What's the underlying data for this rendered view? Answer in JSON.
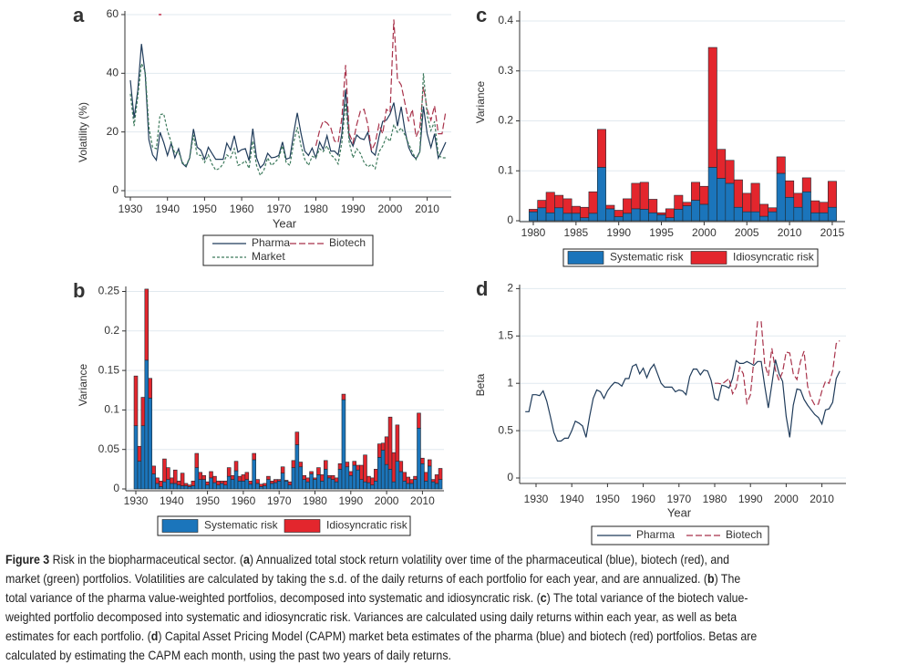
{
  "chart_data": [
    {
      "panel": "a",
      "type": "line",
      "xlabel": "Year",
      "ylabel": "Volatility (%)",
      "xlim": [
        1928,
        2016
      ],
      "ylim": [
        0,
        60
      ],
      "x_ticks": [
        "1930",
        "1940",
        "1950",
        "1960",
        "1970",
        "1980",
        "1990",
        "2000",
        "2010"
      ],
      "y_ticks": [
        "0",
        "20",
        "40",
        "60"
      ],
      "grid": true,
      "legend": [
        "Pharma",
        "Biotech",
        "Market"
      ],
      "legend_placement": "bottom",
      "series": [
        {
          "name": "Pharma",
          "color": "#1f3b5a",
          "start": 1930,
          "values": [
            37.6,
            24.7,
            34,
            50,
            39.7,
            17.4,
            12.2,
            10.4,
            19.9,
            16.4,
            12,
            16.2,
            11.2,
            14.3,
            9.3,
            8.1,
            11.2,
            21,
            14.8,
            13.8,
            10.7,
            14.8,
            12.7,
            10.7,
            10.7,
            10.7,
            16.2,
            13.8,
            18.7,
            13.1,
            14,
            14.3,
            10.2,
            21.1,
            11.2,
            7.8,
            9.1,
            12.7,
            11.2,
            11.4,
            12,
            16.6,
            10.7,
            11.2,
            19.5,
            26.5,
            19.5,
            13.5,
            12,
            14.5,
            11.2,
            16.6,
            14.1,
            18.7,
            13.5,
            13.5,
            12.2,
            19.5,
            34.5,
            17.9,
            15.2,
            19,
            17.8,
            17.4,
            19.9,
            13.2,
            12.1,
            18.3,
            23.6,
            24,
            26.1,
            30,
            22,
            28.6,
            20.5,
            14.7,
            12.1,
            10.9,
            13.2,
            28.7,
            19.4,
            14.7,
            19.4,
            11.1,
            13.7,
            16.5
          ]
        },
        {
          "name": "Biotech",
          "color": "#a8324a",
          "start": 1980,
          "values": [
            15.3,
            20.5,
            23.8,
            23.1,
            21.5,
            16.9,
            16.4,
            24.7,
            42.8,
            19.5,
            16.3,
            22.5,
            27.1,
            27.7,
            22.5,
            13.7,
            16.3,
            22.5,
            19.4,
            27.7,
            26.7,
            58.3,
            38,
            36,
            29.8,
            23.6,
            27.7,
            18.3,
            21.4,
            35.4,
            27.7,
            24,
            28.9,
            19.4,
            19.4,
            27.1
          ]
        },
        {
          "name": "Market",
          "color": "#3d7a5c",
          "start": 1930,
          "values": [
            33,
            22,
            32,
            43.3,
            40.7,
            21.6,
            14.8,
            14.3,
            25.9,
            26.2,
            20.5,
            16.4,
            12.7,
            13.3,
            9.6,
            8.6,
            11.2,
            19,
            12.2,
            12,
            9.6,
            12.2,
            9.1,
            7,
            7.6,
            9.1,
            12.2,
            11.2,
            14.3,
            8.6,
            9.1,
            10.2,
            7.6,
            16.9,
            8.6,
            5.2,
            7,
            11.2,
            8.6,
            9.6,
            11.2,
            15.3,
            9.6,
            8.6,
            16.4,
            21.6,
            15.3,
            10.7,
            8.6,
            11.7,
            11.2,
            14.3,
            13.3,
            15.3,
            12.2,
            11.2,
            9.1,
            16.4,
            29.8,
            16.4,
            11.2,
            14.3,
            12.7,
            9.6,
            8.1,
            9,
            7.5,
            13.2,
            15.2,
            18.3,
            16.8,
            22.5,
            19.9,
            21.4,
            19,
            15.9,
            13.2,
            10.6,
            13.2,
            40,
            25.6,
            20.5,
            23.6,
            12.1,
            11.2,
            11.2
          ]
        }
      ],
      "biotech_stray_point": [
        1938,
        60
      ]
    },
    {
      "panel": "b",
      "type": "bar",
      "stacked": true,
      "ylabel": "Variance",
      "xlim": [
        1927,
        2016
      ],
      "ylim": [
        0,
        0.25
      ],
      "x_ticks": [
        "1930",
        "1940",
        "1950",
        "1960",
        "1970",
        "1980",
        "1990",
        "2000",
        "2010"
      ],
      "y_ticks": [
        "0",
        "0.05",
        "0.1",
        "0.15",
        "0.2",
        "0.25"
      ],
      "grid": true,
      "legend": [
        "Systematic risk",
        "Idiosyncratic risk"
      ],
      "legend_placement": "bottom",
      "start": 1930,
      "series": [
        {
          "name": "Systematic risk",
          "color": "#1b75bb",
          "values": [
            0.08,
            0.035,
            0.08,
            0.163,
            0.115,
            0.019,
            0.007,
            0.003,
            0.009,
            0.012,
            0.007,
            0.007,
            0.005,
            0.004,
            0.004,
            0.003,
            0.004,
            0.027,
            0.012,
            0.012,
            0.005,
            0.014,
            0.008,
            0.005,
            0.007,
            0.005,
            0.016,
            0.012,
            0.023,
            0.01,
            0.01,
            0.012,
            0.006,
            0.037,
            0.007,
            0.003,
            0.004,
            0.012,
            0.007,
            0.008,
            0.01,
            0.02,
            0.01,
            0.005,
            0.027,
            0.056,
            0.028,
            0.012,
            0.009,
            0.019,
            0.012,
            0.018,
            0.01,
            0.025,
            0.014,
            0.012,
            0.009,
            0.025,
            0.113,
            0.028,
            0.017,
            0.03,
            0.024,
            0.012,
            0.009,
            0.008,
            0.005,
            0.01,
            0.04,
            0.049,
            0.031,
            0.025,
            0.009,
            0.035,
            0.022,
            0.01,
            0.007,
            0.007,
            0.012,
            0.077,
            0.032,
            0.01,
            0.029,
            0.009,
            0.007,
            0.012
          ]
        },
        {
          "name": "Idiosyncratic risk",
          "color": "#e3262d",
          "values": [
            0.063,
            0.019,
            0.036,
            0.09,
            0.025,
            0.01,
            0.007,
            0.007,
            0.029,
            0.015,
            0.007,
            0.017,
            0.005,
            0.016,
            0.003,
            0.002,
            0.006,
            0.018,
            0.009,
            0.005,
            0.004,
            0.008,
            0.008,
            0.005,
            0.003,
            0.005,
            0.011,
            0.005,
            0.012,
            0.006,
            0.008,
            0.009,
            0.004,
            0.008,
            0.005,
            0.003,
            0.003,
            0.004,
            0.003,
            0.004,
            0.002,
            0.008,
            0.001,
            0.004,
            0.009,
            0.016,
            0.006,
            0.005,
            0.005,
            0.003,
            0.002,
            0.009,
            0.008,
            0.011,
            0.003,
            0.005,
            0.005,
            0.007,
            0.007,
            0.006,
            0.005,
            0.005,
            0.006,
            0.018,
            0.034,
            0.008,
            0.009,
            0.015,
            0.017,
            0.009,
            0.035,
            0.066,
            0.037,
            0.046,
            0.013,
            0.011,
            0.008,
            0.005,
            0.004,
            0.019,
            0.007,
            0.011,
            0.008,
            0.003,
            0.011,
            0.014
          ]
        }
      ]
    },
    {
      "panel": "c",
      "type": "bar",
      "stacked": true,
      "ylabel": "Variance",
      "xlim": [
        1978.4,
        2016.3
      ],
      "ylim": [
        0,
        0.4
      ],
      "x_ticks": [
        "1980",
        "1985",
        "1990",
        "1995",
        "2000",
        "2005",
        "2010",
        "2015"
      ],
      "y_ticks": [
        "0",
        "0.1",
        "0.2",
        "0.3",
        "0.4"
      ],
      "grid": true,
      "legend": [
        "Systematic risk",
        "Idiosyncratic risk"
      ],
      "legend_placement": "bottom",
      "start": 1980,
      "series": [
        {
          "name": "Systematic risk",
          "color": "#1b75bb",
          "values": [
            0.018,
            0.026,
            0.016,
            0.026,
            0.015,
            0.015,
            0.006,
            0.015,
            0.107,
            0.024,
            0.008,
            0.015,
            0.024,
            0.023,
            0.016,
            0.012,
            0.006,
            0.023,
            0.03,
            0.041,
            0.033,
            0.107,
            0.085,
            0.075,
            0.027,
            0.018,
            0.018,
            0.009,
            0.018,
            0.095,
            0.047,
            0.027,
            0.058,
            0.016,
            0.016,
            0.027
          ]
        },
        {
          "name": "Idiosyncratic risk",
          "color": "#e3262d",
          "values": [
            0.005,
            0.015,
            0.041,
            0.025,
            0.029,
            0.014,
            0.021,
            0.043,
            0.076,
            0.007,
            0.013,
            0.029,
            0.051,
            0.054,
            0.027,
            0.004,
            0.018,
            0.028,
            0.007,
            0.036,
            0.036,
            0.24,
            0.058,
            0.046,
            0.055,
            0.037,
            0.057,
            0.024,
            0.008,
            0.033,
            0.033,
            0.028,
            0.028,
            0.024,
            0.021,
            0.052
          ]
        }
      ]
    },
    {
      "panel": "d",
      "type": "line",
      "xlabel": "Year",
      "ylabel": "Beta",
      "xlim": [
        1925.5,
        2016.5
      ],
      "ylim": [
        0,
        2
      ],
      "x_ticks": [
        "1930",
        "1940",
        "1950",
        "1960",
        "1970",
        "1980",
        "1990",
        "2000",
        "2010"
      ],
      "y_ticks": [
        "0",
        "0.5",
        "1",
        "1.5",
        "2"
      ],
      "grid": true,
      "legend": [
        "Pharma",
        "Biotech"
      ],
      "legend_placement": "bottom",
      "series": [
        {
          "name": "Pharma",
          "color": "#1f3b5a",
          "start": 1927,
          "values": [
            0.7,
            0.7,
            0.88,
            0.88,
            0.87,
            0.92,
            0.81,
            0.65,
            0.48,
            0.39,
            0.39,
            0.42,
            0.42,
            0.5,
            0.6,
            0.58,
            0.55,
            0.43,
            0.65,
            0.84,
            0.93,
            0.91,
            0.84,
            0.92,
            0.97,
            1.01,
            1.0,
            0.97,
            1.05,
            1.05,
            1.18,
            1.2,
            1.1,
            1.16,
            1.06,
            1.15,
            1.2,
            1.1,
            1.0,
            0.96,
            0.96,
            0.96,
            0.91,
            0.93,
            0.92,
            0.88,
            1.07,
            1.15,
            1.15,
            1.09,
            1.14,
            1.13,
            1.03,
            0.84,
            0.82,
            0.98,
            0.97,
            0.95,
            1.05,
            1.24,
            1.21,
            1.21,
            1.23,
            1.21,
            1.19,
            1.23,
            1.23,
            0.97,
            0.74,
            0.99,
            1.25,
            1.1,
            1.02,
            0.65,
            0.43,
            0.77,
            0.94,
            0.93,
            0.83,
            0.77,
            0.72,
            0.67,
            0.64,
            0.57,
            0.72,
            0.73,
            0.8,
            1.05,
            1.13
          ]
        },
        {
          "name": "Biotech",
          "color": "#a8324a",
          "start": 1980,
          "values": [
            1.0,
            1.0,
            0.99,
            1.02,
            1.05,
            0.89,
            0.96,
            1.17,
            1.1,
            0.79,
            0.88,
            1.26,
            1.65,
            1.65,
            1.2,
            1.08,
            1.37,
            1.14,
            1.03,
            1.12,
            1.33,
            1.32,
            1.1,
            1.04,
            1.23,
            1.34,
            0.97,
            0.84,
            0.77,
            0.78,
            0.92,
            1.02,
            1.0,
            1.13,
            1.42,
            1.45
          ]
        }
      ]
    }
  ],
  "panel_labels": [
    "a",
    "b",
    "c",
    "d"
  ],
  "caption": {
    "lines": [
      [
        {
          "t": "Figure 3",
          "b": true
        },
        {
          "t": " Risk in the biopharmaceutical sector. (",
          "b": false
        },
        {
          "t": "a",
          "b": true
        },
        {
          "t": ") Annualized total stock return volatility over time of the pharmaceutical (blue), biotech (red), and",
          "b": false
        }
      ],
      [
        {
          "t": "market (green) portfolios. Volatilities are calculated by taking the s.d. of the daily returns of each portfolio for each year, and are annualized. (",
          "b": false
        },
        {
          "t": "b",
          "b": true
        },
        {
          "t": ") The",
          "b": false
        }
      ],
      [
        {
          "t": "total variance of the pharma value-weighted portfolios, decomposed into systematic and idiosyncratic risk. (",
          "b": false
        },
        {
          "t": "c",
          "b": true
        },
        {
          "t": ") The total variance of the biotech value-",
          "b": false
        }
      ],
      [
        {
          "t": "weighted portfolio decomposed into systematic and idiosyncratic risk. Variances are calculated using daily returns within each year, as well as beta",
          "b": false
        }
      ],
      [
        {
          "t": "estimates for each portfolio. (",
          "b": false
        },
        {
          "t": "d",
          "b": true
        },
        {
          "t": ") Capital Asset Pricing Model (CAPM) market beta estimates of the pharma (blue) and biotech (red) portfolios. Betas are",
          "b": false
        }
      ],
      [
        {
          "t": "calculated by estimating the CAPM each month, using the past two years of daily returns.",
          "b": false
        }
      ]
    ]
  }
}
